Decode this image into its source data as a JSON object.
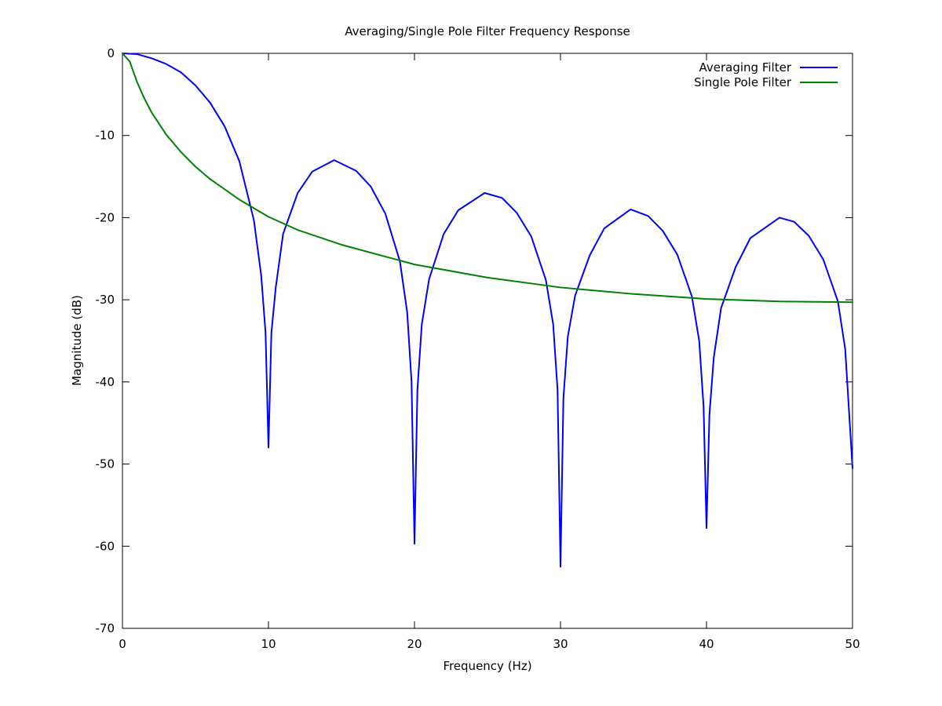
{
  "chart_data": {
    "type": "line",
    "title": "Averaging/Single Pole Filter Frequency Response",
    "xlabel": "Frequency (Hz)",
    "ylabel": "Magnitude (dB)",
    "xlim": [
      0,
      50
    ],
    "ylim": [
      -70,
      0
    ],
    "xticks": [
      0,
      10,
      20,
      30,
      40,
      50
    ],
    "yticks": [
      0,
      -10,
      -20,
      -30,
      -40,
      -50,
      -60,
      -70
    ],
    "grid": false,
    "legend": {
      "position": "top-right"
    },
    "series": [
      {
        "name": "Averaging Filter",
        "color": "#0000ff",
        "x": [
          0,
          1,
          2,
          3,
          4,
          5,
          6,
          7,
          8,
          9,
          9.5,
          9.8,
          10,
          10.2,
          10.5,
          11,
          12,
          13,
          14.5,
          16,
          17,
          18,
          19,
          19.5,
          19.8,
          20,
          20.2,
          20.5,
          21,
          22,
          23,
          24.8,
          26,
          27,
          28,
          29,
          29.5,
          29.8,
          30,
          30.2,
          30.5,
          31,
          32,
          33,
          34.8,
          36,
          37,
          38,
          39,
          39.5,
          39.8,
          40,
          40.2,
          40.5,
          41,
          42,
          43,
          45,
          46,
          47,
          48,
          49,
          49.5,
          50
        ],
        "y": [
          0,
          -0.1,
          -0.6,
          -1.3,
          -2.3,
          -3.9,
          -6,
          -8.9,
          -13.1,
          -20.3,
          -27,
          -34,
          -48,
          -34,
          -28.5,
          -22,
          -17,
          -14.4,
          -13,
          -14.3,
          -16.2,
          -19.5,
          -25.3,
          -31.5,
          -40,
          -59.7,
          -41,
          -33,
          -27.5,
          -22,
          -19.1,
          -17,
          -17.6,
          -19.4,
          -22.3,
          -27.6,
          -33,
          -41,
          -62.5,
          -42,
          -34.5,
          -29.5,
          -24.6,
          -21.3,
          -19,
          -19.8,
          -21.6,
          -24.5,
          -29.6,
          -35,
          -43,
          -57.8,
          -44,
          -37,
          -31,
          -26,
          -22.5,
          -20,
          -20.5,
          -22.2,
          -25.1,
          -30.2,
          -36,
          -50.5
        ]
      },
      {
        "name": "Single Pole Filter",
        "color": "#008000",
        "x": [
          0,
          0.5,
          1,
          1.5,
          2,
          3,
          4,
          5,
          6,
          8,
          10,
          12,
          15,
          20,
          25,
          30,
          35,
          40,
          45,
          50
        ],
        "y": [
          0,
          -1,
          -3.5,
          -5.5,
          -7.2,
          -9.9,
          -12,
          -13.8,
          -15.3,
          -17.8,
          -19.9,
          -21.5,
          -23.3,
          -25.7,
          -27.3,
          -28.5,
          -29.3,
          -29.9,
          -30.2,
          -30.3
        ]
      }
    ]
  }
}
